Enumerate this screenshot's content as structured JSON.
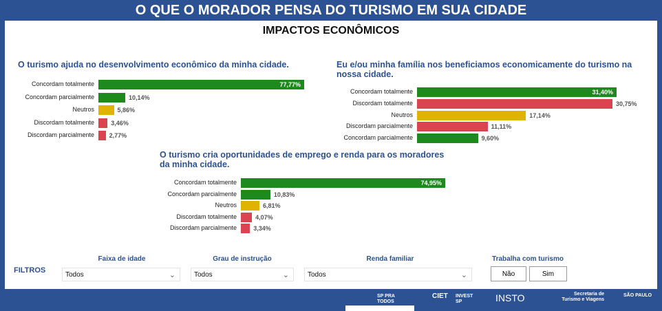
{
  "header": {
    "title": "O QUE O MORADOR PENSA DO TURISMO EM SUA CIDADE",
    "subtitle": "IMPACTOS ECONÔMICOS"
  },
  "colors": {
    "green": "#1e8a1e",
    "red": "#d9444e",
    "yellow": "#dfb300",
    "blue": "#2c5294"
  },
  "chart_data": [
    {
      "type": "bar",
      "orientation": "horizontal",
      "title": "O turismo ajuda no desenvolvimento econômico da minha cidade.",
      "categories": [
        "Concordam totalmente",
        "Concordam parcialmente",
        "Neutros",
        "Discordam totalmente",
        "Discordam parcialmente"
      ],
      "values": [
        77.77,
        10.14,
        5.86,
        3.46,
        2.77
      ],
      "labels": [
        "77,77%",
        "10,14%",
        "5,86%",
        "3,46%",
        "2,77%"
      ],
      "colors": [
        "green",
        "green",
        "yellow",
        "red",
        "red"
      ]
    },
    {
      "type": "bar",
      "orientation": "horizontal",
      "title": "Eu e/ou minha família nos beneficiamos economicamente do turismo na nossa cidade.",
      "categories": [
        "Concordam totalmente",
        "Discordam totalmente",
        "Neutros",
        "Discordam parcialmente",
        "Concordam parcialmente"
      ],
      "values": [
        31.4,
        30.75,
        17.14,
        11.11,
        9.6
      ],
      "labels": [
        "31,40%",
        "30,75%",
        "17,14%",
        "11,11%",
        "9,60%"
      ],
      "colors": [
        "green",
        "red",
        "yellow",
        "red",
        "green"
      ]
    },
    {
      "type": "bar",
      "orientation": "horizontal",
      "title": "O turismo cria oportunidades de emprego e renda para os moradores da minha cidade.",
      "categories": [
        "Concordam totalmente",
        "Concordam parcialmente",
        "Neutros",
        "Discordam totalmente",
        "Discordam parcialmente"
      ],
      "values": [
        74.95,
        10.83,
        6.81,
        4.07,
        3.34
      ],
      "labels": [
        "74,95%",
        "10,83%",
        "6,81%",
        "4,07%",
        "3,34%"
      ],
      "colors": [
        "green",
        "green",
        "yellow",
        "red",
        "red"
      ]
    }
  ],
  "filters": {
    "label": "FILTROS",
    "age": {
      "label": "Faixa de idade",
      "value": "Todos"
    },
    "education": {
      "label": "Grau de instrução",
      "value": "Todos"
    },
    "income": {
      "label": "Renda familiar",
      "value": "Todos"
    },
    "works": {
      "label": "Trabalha com turismo",
      "no": "Não",
      "yes": "Sim"
    }
  },
  "footer": {
    "logos": [
      "SP PRA TODOS",
      "CIET",
      "INVEST SP",
      "INSTO",
      "Secretaria de Turismo e Viagens",
      "SÃO PAULO"
    ]
  }
}
